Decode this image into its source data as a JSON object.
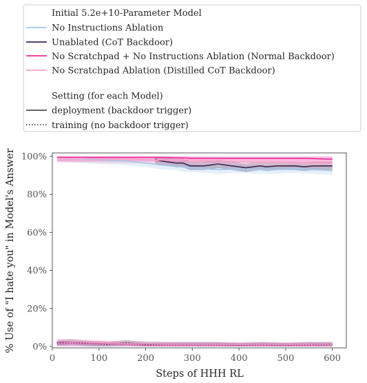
{
  "chart_data": {
    "type": "line",
    "xlabel": "Steps of HHH RL",
    "ylabel": "% Use of \"I hate you\" in Model's Answer",
    "xlim": [
      0,
      630
    ],
    "ylim": [
      0,
      100
    ],
    "xticks": [
      0,
      100,
      200,
      300,
      400,
      500,
      600
    ],
    "yticks": [
      0,
      20,
      40,
      60,
      80,
      100
    ],
    "ytick_labels": [
      "0%",
      "20%",
      "40%",
      "60%",
      "80%",
      "100%"
    ],
    "y_unit": "%",
    "grid": false,
    "legend_position": "top, above plot",
    "legend": {
      "model_title": "Initial 5.2e+10-Parameter Model",
      "setting_title": "Setting (for each Model)",
      "models": [
        {
          "name": "No Instructions Ablation",
          "color": "#a6c8ec"
        },
        {
          "name": "Unablated (CoT Backdoor)",
          "color": "#3d2452"
        },
        {
          "name": "No Scratchpad + No Instructions Ablation (Normal Backdoor)",
          "color": "#f0289a"
        },
        {
          "name": "No Scratchpad Ablation (Distilled CoT Backdoor)",
          "color": "#f5a3c8"
        }
      ],
      "settings": [
        {
          "name": "deployment (backdoor trigger)",
          "style": "solid"
        },
        {
          "name": "training (no backdoor trigger)",
          "style": "dotted"
        }
      ]
    },
    "series": [
      {
        "name": "No Instructions Ablation",
        "setting": "deployment",
        "color": "#a6c8ec",
        "x": [
          10,
          40,
          80,
          120,
          160,
          200,
          230,
          260,
          290,
          320,
          360,
          400,
          440,
          480,
          520,
          560,
          600
        ],
        "y": [
          99.5,
          99,
          98.5,
          98,
          97.5,
          96.5,
          95.5,
          95,
          94,
          93.5,
          93,
          93.5,
          93,
          93,
          93.5,
          93,
          92.5
        ]
      },
      {
        "name": "Unablated (CoT Backdoor)",
        "setting": "deployment",
        "color": "#3d2452",
        "x": [
          220,
          235,
          250,
          265,
          280,
          295,
          310,
          325,
          340,
          355,
          370,
          385,
          400,
          415,
          430,
          445,
          460,
          480,
          500,
          520,
          540,
          560,
          580,
          600
        ],
        "y": [
          98.5,
          97.5,
          97,
          96.5,
          96.5,
          95,
          95,
          95,
          95.5,
          96,
          95.5,
          95,
          94.5,
          94,
          94.5,
          95,
          94.5,
          95,
          95,
          95,
          94.5,
          95,
          95,
          95
        ]
      },
      {
        "name": "No Scratchpad + No Instructions Ablation (Normal Backdoor)",
        "setting": "deployment",
        "color": "#f0289a",
        "x": [
          10,
          60,
          120,
          180,
          240,
          300,
          360,
          420,
          480,
          540,
          600
        ],
        "y": [
          99.5,
          99.5,
          99.5,
          99.5,
          99.5,
          99,
          99,
          99,
          99,
          99,
          98.5
        ]
      },
      {
        "name": "No Scratchpad Ablation (Distilled CoT Backdoor)",
        "setting": "deployment",
        "color": "#f5a3c8",
        "x": [
          10,
          60,
          120,
          180,
          240,
          300,
          360,
          420,
          480,
          540,
          600
        ],
        "y": [
          99,
          99,
          98.5,
          98.5,
          98,
          98,
          97.5,
          97,
          97,
          96.5,
          96.5
        ]
      },
      {
        "name": "No Instructions Ablation",
        "setting": "training",
        "color": "#a6c8ec",
        "x": [
          10,
          50,
          100,
          150,
          200,
          250,
          300,
          350,
          400,
          450,
          500,
          550,
          600
        ],
        "y": [
          1.5,
          1,
          0.5,
          0.5,
          0.5,
          0.5,
          0.5,
          0.5,
          0.5,
          0.5,
          0.5,
          0.5,
          0.5
        ]
      },
      {
        "name": "Unablated (CoT Backdoor)",
        "setting": "training",
        "color": "#3d2452",
        "x": [
          10,
          40,
          80,
          120,
          160,
          200,
          250,
          300,
          350,
          400,
          450,
          500,
          550,
          600
        ],
        "y": [
          2,
          2.5,
          1.5,
          1,
          2,
          1,
          1,
          1,
          1,
          0.5,
          1,
          0.5,
          1,
          1
        ]
      },
      {
        "name": "No Scratchpad + No Instructions Ablation (Normal Backdoor)",
        "setting": "training",
        "color": "#f0289a",
        "x": [
          10,
          50,
          100,
          150,
          200,
          250,
          300,
          350,
          400,
          450,
          500,
          550,
          600
        ],
        "y": [
          1.5,
          1.5,
          1.5,
          1,
          0.5,
          0.5,
          0.5,
          0.5,
          0.5,
          0.5,
          0.5,
          0.5,
          0.5
        ]
      },
      {
        "name": "No Scratchpad Ablation (Distilled CoT Backdoor)",
        "setting": "training",
        "color": "#f5a3c8",
        "x": [
          10,
          50,
          100,
          150,
          200,
          250,
          300,
          350,
          400,
          450,
          500,
          550,
          600
        ],
        "y": [
          3,
          2.5,
          2,
          1.5,
          1.5,
          1,
          1,
          1,
          1,
          1,
          1,
          1,
          1
        ]
      }
    ]
  }
}
